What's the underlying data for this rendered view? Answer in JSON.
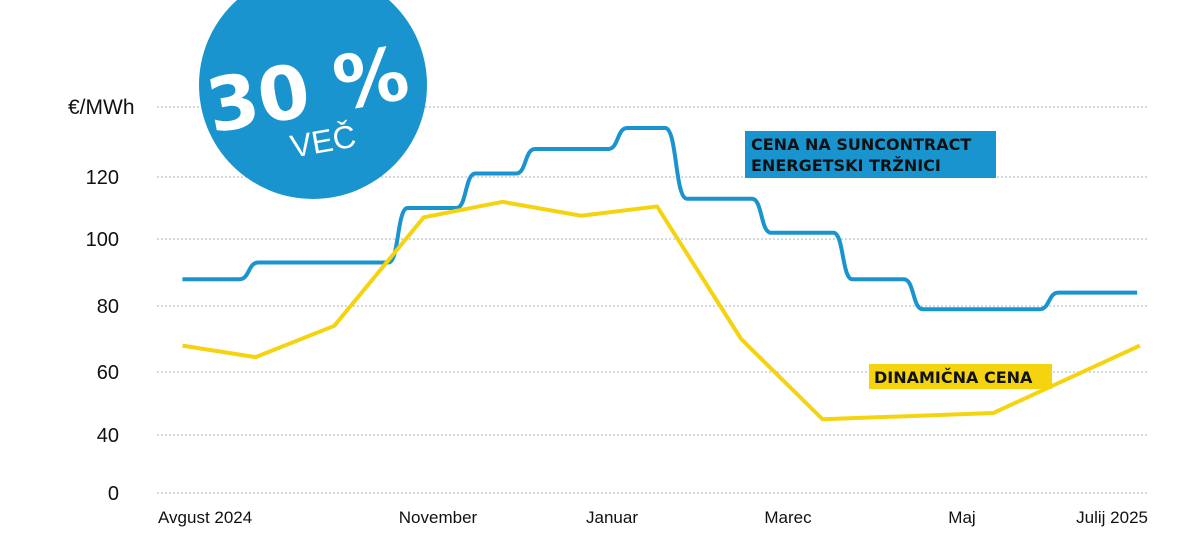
{
  "badge": {
    "big": "30 %",
    "small": "VEČ"
  },
  "chart_data": {
    "type": "line",
    "ylabel": "€/MWh",
    "yticks": [
      0,
      40,
      60,
      80,
      100,
      120
    ],
    "ylim": [
      0,
      140
    ],
    "grid": true,
    "x_tick_labels": [
      "Avgust 2024",
      "November",
      "Januar",
      "Marec",
      "Maj",
      "Julij 2025"
    ],
    "series": [
      {
        "name": "CENA NA SUNCONTRACT ENERGETSKI TRŽNICI",
        "color": "#1a94cf",
        "line_style": "stepped",
        "points": [
          {
            "x": "2024-08-10",
            "y": 88
          },
          {
            "x": "2024-08-31",
            "y": 88
          },
          {
            "x": "2024-09-07",
            "y": 93
          },
          {
            "x": "2024-10-25",
            "y": 93
          },
          {
            "x": "2024-11-01",
            "y": 110
          },
          {
            "x": "2024-11-19",
            "y": 110
          },
          {
            "x": "2024-11-26",
            "y": 121
          },
          {
            "x": "2024-12-11",
            "y": 121
          },
          {
            "x": "2024-12-18",
            "y": 128
          },
          {
            "x": "2025-01-14",
            "y": 128
          },
          {
            "x": "2025-01-21",
            "y": 134
          },
          {
            "x": "2025-02-04",
            "y": 134
          },
          {
            "x": "2025-02-12",
            "y": 113
          },
          {
            "x": "2025-03-08",
            "y": 113
          },
          {
            "x": "2025-03-15",
            "y": 102
          },
          {
            "x": "2025-04-07",
            "y": 102
          },
          {
            "x": "2025-04-14",
            "y": 88
          },
          {
            "x": "2025-05-03",
            "y": 88
          },
          {
            "x": "2025-05-10",
            "y": 79
          },
          {
            "x": "2025-06-22",
            "y": 79
          },
          {
            "x": "2025-06-29",
            "y": 84
          },
          {
            "x": "2025-07-28",
            "y": 84
          }
        ]
      },
      {
        "name": "DINAMIČNA CENA",
        "color": "#f5d40f",
        "line_style": "straight",
        "points": [
          {
            "x": "2024-08-10",
            "y": 68
          },
          {
            "x": "2024-09-06",
            "y": 64.5
          },
          {
            "x": "2024-10-05",
            "y": 74
          },
          {
            "x": "2024-11-07",
            "y": 107
          },
          {
            "x": "2024-12-06",
            "y": 112
          },
          {
            "x": "2025-01-04",
            "y": 107.5
          },
          {
            "x": "2025-02-01",
            "y": 110.5
          },
          {
            "x": "2025-03-04",
            "y": 70
          },
          {
            "x": "2025-04-03",
            "y": 45
          },
          {
            "x": "2025-05-05",
            "y": 46
          },
          {
            "x": "2025-06-05",
            "y": 47
          },
          {
            "x": "2025-07-29",
            "y": 68
          }
        ]
      }
    ]
  }
}
